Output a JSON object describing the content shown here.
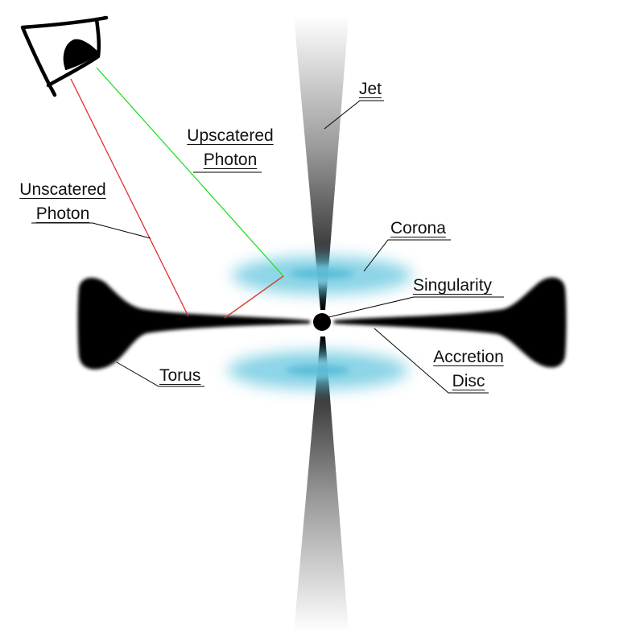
{
  "labels": {
    "jet": "Jet",
    "upscattered_line1": "Upscatered",
    "upscattered_line2": "Photon",
    "unscattered_line1": "Unscatered",
    "unscattered_line2": "Photon",
    "corona": "Corona",
    "singularity": "Singularity",
    "accretion_line1": "Accretion",
    "accretion_line2": "Disc",
    "torus": "Torus"
  },
  "colors": {
    "structure": "#000000",
    "jet_fade": "#ffffff",
    "corona": "#5cc3dc",
    "upscattered_photon": "#22dd22",
    "unscattered_photon": "#e03030",
    "leader_line": "#000000"
  },
  "icons": {
    "observer": "eye-icon"
  }
}
